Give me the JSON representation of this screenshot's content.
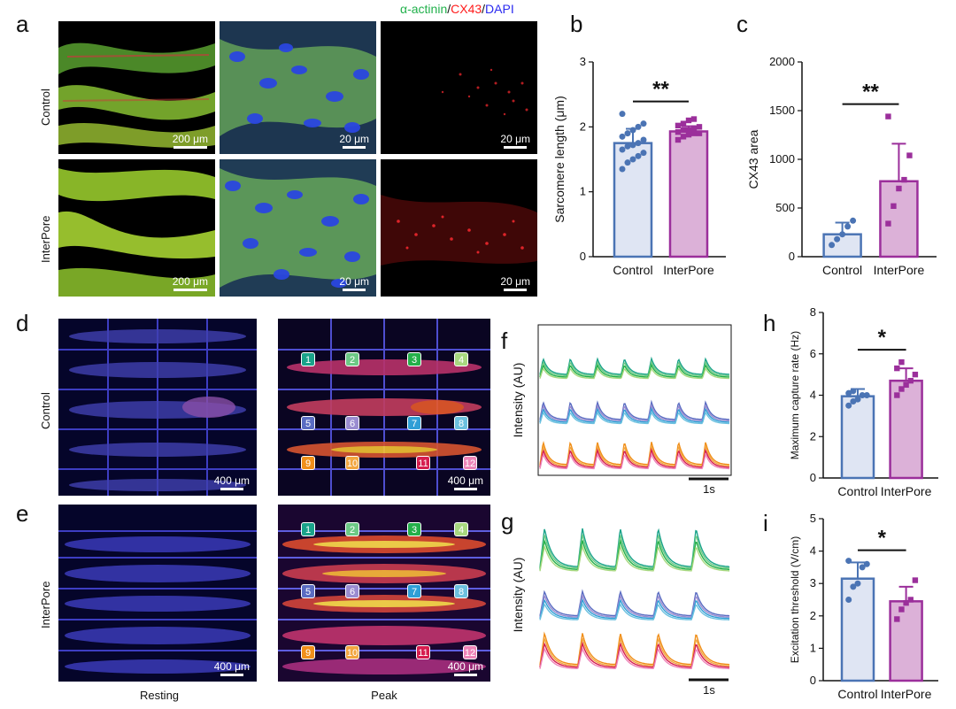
{
  "panel_letters": {
    "a": "a",
    "b": "b",
    "c": "c",
    "d": "d",
    "e": "e",
    "f": "f",
    "g": "g",
    "h": "h",
    "i": "i"
  },
  "stain_legend": {
    "alpha": "α-actinin",
    "slash1": "/",
    "cx43": "CX43",
    "slash2": "/",
    "dapi": "DAPI"
  },
  "colors": {
    "alpha": "#22b14c",
    "cx43": "#ff1c1c",
    "dapi": "#2a2af0",
    "control_fill": "#dfe5f3",
    "control_stroke": "#4b74b4",
    "interpore_fill": "#dcb1d8",
    "interpore_stroke": "#9b2f9b"
  },
  "row_labels": {
    "control": "Control",
    "interpore": "InterPore"
  },
  "scale_bars": {
    "s200": "200 μm",
    "s20": "20 μm",
    "s400": "400 μm"
  },
  "bottom_captions": {
    "resting": "Resting",
    "peak": "Peak"
  },
  "badges": [
    "1",
    "2",
    "3",
    "4",
    "5",
    "6",
    "7",
    "8",
    "9",
    "10",
    "11",
    "12"
  ],
  "badge_colors": [
    "#1aa38a",
    "#6cc985",
    "#24b04a",
    "#a8d87f",
    "#5a6cc2",
    "#9a8cd0",
    "#2f9fd6",
    "#6cc0df",
    "#f08f1a",
    "#f2a640",
    "#d61d4e",
    "#ee84b8"
  ],
  "traces": {
    "ylabel": "Intensity (AU)",
    "scale": "1s"
  },
  "chart_data": [
    {
      "id": "b",
      "type": "bar",
      "categories": [
        "Control",
        "InterPore"
      ],
      "values": [
        1.75,
        1.93
      ],
      "errors": [
        0.22,
        0.08
      ],
      "points": [
        [
          1.35,
          1.45,
          1.5,
          1.55,
          1.6,
          1.65,
          1.7,
          1.72,
          1.75,
          1.8,
          1.85,
          1.9,
          1.95,
          2.0,
          2.05,
          2.2
        ],
        [
          1.8,
          1.85,
          1.88,
          1.9,
          1.9,
          1.92,
          1.95,
          1.95,
          1.98,
          2.0,
          2.02,
          2.05,
          2.1,
          2.12
        ]
      ],
      "ylabel": "Sarcomere length (μm)",
      "ylim": [
        0,
        3
      ],
      "yticks": [
        0,
        1,
        2,
        3
      ],
      "significance": "**"
    },
    {
      "id": "c",
      "type": "bar",
      "categories": [
        "Control",
        "InterPore"
      ],
      "values": [
        230,
        775
      ],
      "errors": [
        120,
        385
      ],
      "points": [
        [
          120,
          180,
          230,
          310,
          370
        ],
        [
          340,
          520,
          700,
          790,
          1040,
          1440
        ]
      ],
      "ylabel": "CX43 area",
      "ylim": [
        0,
        2000
      ],
      "yticks": [
        0,
        500,
        1000,
        1500,
        2000
      ],
      "significance": "**"
    },
    {
      "id": "h",
      "type": "bar",
      "categories": [
        "Control",
        "InterPore"
      ],
      "values": [
        3.95,
        4.7
      ],
      "errors": [
        0.35,
        0.6
      ],
      "points": [
        [
          3.5,
          3.7,
          3.8,
          4.0,
          4.0,
          4.1,
          4.2
        ],
        [
          4.0,
          4.3,
          4.5,
          4.7,
          5.0,
          5.3,
          5.6
        ]
      ],
      "ylabel": "Maximum capture rate (Hz)",
      "ylim": [
        0,
        8
      ],
      "yticks": [
        0,
        2,
        4,
        6,
        8
      ],
      "significance": "*"
    },
    {
      "id": "i",
      "type": "bar",
      "categories": [
        "Control",
        "InterPore"
      ],
      "values": [
        3.15,
        2.45
      ],
      "errors": [
        0.5,
        0.45
      ],
      "points": [
        [
          2.5,
          2.9,
          3.0,
          3.5,
          3.6,
          3.7
        ],
        [
          1.9,
          2.2,
          2.4,
          2.5,
          3.1
        ]
      ],
      "ylabel": "Excitation threshold (V/cm)",
      "ylim": [
        0,
        5
      ],
      "yticks": [
        0,
        1,
        2,
        3,
        4,
        5
      ],
      "significance": "*"
    }
  ]
}
